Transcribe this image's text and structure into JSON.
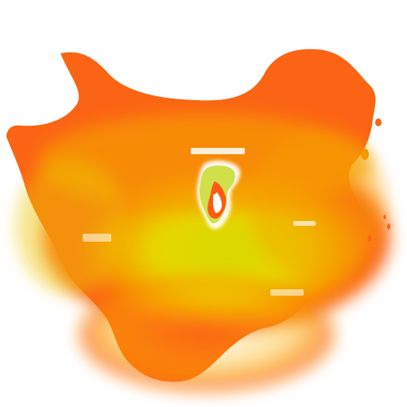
{
  "map": {
    "colors": {
      "background": "#ffffff",
      "low": "#d8d800",
      "mid": "#f5a000",
      "high": "#fb6414",
      "outline_white": "#ffffff",
      "label_muted": "#ffffff"
    },
    "labels": []
  }
}
